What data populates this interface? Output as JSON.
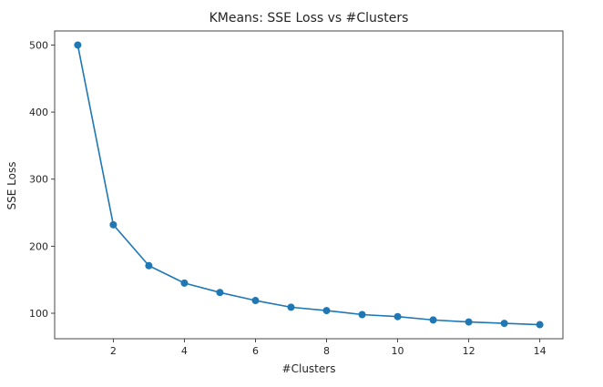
{
  "chart_data": {
    "type": "line",
    "title": "KMeans: SSE Loss vs #Clusters",
    "xlabel": "#Clusters",
    "ylabel": "SSE Loss",
    "x": [
      1,
      2,
      3,
      4,
      5,
      6,
      7,
      8,
      9,
      10,
      11,
      12,
      13,
      14
    ],
    "series": [
      {
        "values": [
          500,
          232,
          171,
          145,
          131,
          119,
          109,
          104,
          98,
          95,
          90,
          87,
          85,
          83
        ],
        "color": "#1f77b4",
        "marker": "circle"
      }
    ],
    "xticks": [
      2,
      4,
      6,
      8,
      10,
      12,
      14
    ],
    "yticks": [
      100,
      200,
      300,
      400,
      500
    ],
    "xlim": [
      0.35,
      14.65
    ],
    "ylim": [
      62,
      521
    ],
    "grid": false,
    "legend": "none"
  }
}
